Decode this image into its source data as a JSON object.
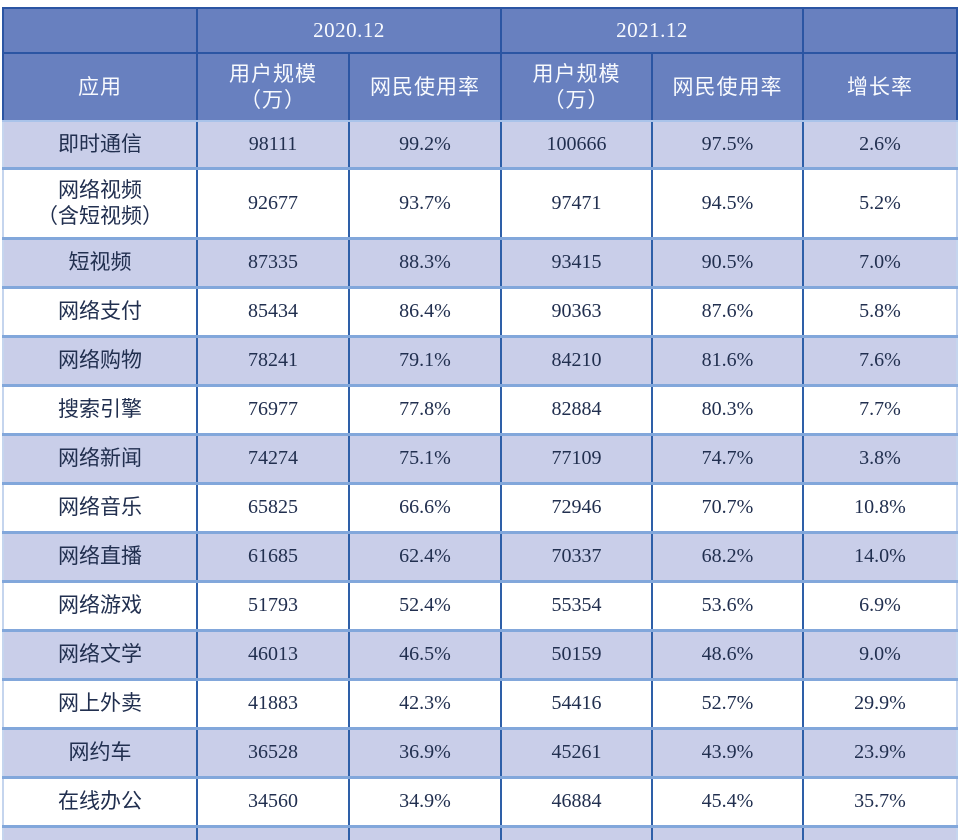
{
  "chart_data": {
    "type": "table",
    "col_groups": [
      "2020.12",
      "2021.12"
    ],
    "headers": [
      "应用",
      "用户规模\n（万）",
      "网民使用率",
      "用户规模\n（万）",
      "网民使用率",
      "增长率"
    ],
    "rows": [
      [
        "即时通信",
        "98111",
        "99.2%",
        "100666",
        "97.5%",
        "2.6%"
      ],
      [
        "网络视频\n（含短视频）",
        "92677",
        "93.7%",
        "97471",
        "94.5%",
        "5.2%"
      ],
      [
        "短视频",
        "87335",
        "88.3%",
        "93415",
        "90.5%",
        "7.0%"
      ],
      [
        "网络支付",
        "85434",
        "86.4%",
        "90363",
        "87.6%",
        "5.8%"
      ],
      [
        "网络购物",
        "78241",
        "79.1%",
        "84210",
        "81.6%",
        "7.6%"
      ],
      [
        "搜索引擎",
        "76977",
        "77.8%",
        "82884",
        "80.3%",
        "7.7%"
      ],
      [
        "网络新闻",
        "74274",
        "75.1%",
        "77109",
        "74.7%",
        "3.8%"
      ],
      [
        "网络音乐",
        "65825",
        "66.6%",
        "72946",
        "70.7%",
        "10.8%"
      ],
      [
        "网络直播",
        "61685",
        "62.4%",
        "70337",
        "68.2%",
        "14.0%"
      ],
      [
        "网络游戏",
        "51793",
        "52.4%",
        "55354",
        "53.6%",
        "6.9%"
      ],
      [
        "网络文学",
        "46013",
        "46.5%",
        "50159",
        "48.6%",
        "9.0%"
      ],
      [
        "网上外卖",
        "41883",
        "42.3%",
        "54416",
        "52.7%",
        "29.9%"
      ],
      [
        "网约车",
        "36528",
        "36.9%",
        "45261",
        "43.9%",
        "23.9%"
      ],
      [
        "在线办公",
        "34560",
        "34.9%",
        "46884",
        "45.4%",
        "35.7%"
      ]
    ],
    "layout": {
      "legend": "none",
      "grid": "on",
      "column_group_spans": [
        1,
        2,
        2,
        1
      ]
    },
    "colors": {
      "header_bg": "#6880BF",
      "header_text": "#F8FAFE",
      "row_alt_bg": "#C9CEE9",
      "row_bg": "#FFFFFF",
      "body_text": "#212F4F",
      "border_dark": "#2B55A3",
      "border_light": "#82A7DB"
    }
  }
}
